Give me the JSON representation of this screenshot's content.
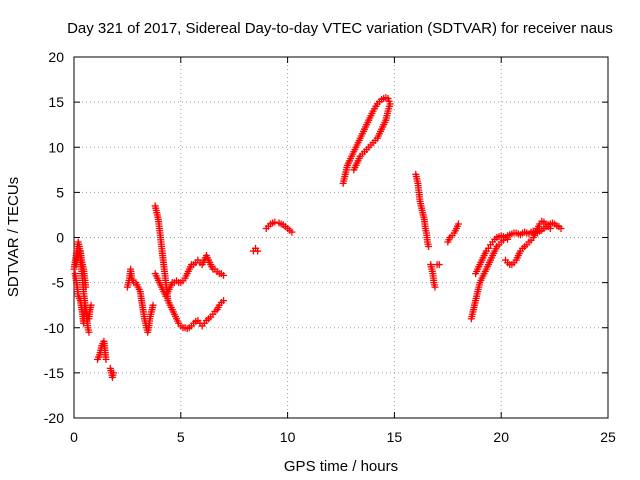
{
  "chart_data": {
    "type": "scatter",
    "title": "Day 321 of 2017, Sidereal Day-to-day VTEC variation (SDTVAR) for receiver naus",
    "xlabel": "GPS time / hours",
    "ylabel": "SDTVAR / TECUs",
    "xlim": [
      0,
      25
    ],
    "ylim": [
      -20,
      20
    ],
    "xticks": [
      0,
      5,
      10,
      15,
      20,
      25
    ],
    "yticks": [
      -20,
      -15,
      -10,
      -5,
      0,
      5,
      10,
      15,
      20
    ],
    "grid": true,
    "marker": "+",
    "series_color": "#ff0000",
    "segments": [
      {
        "points": [
          [
            0.0,
            -3.5
          ],
          [
            0.1,
            -2.0
          ],
          [
            0.2,
            -0.5
          ],
          [
            0.25,
            -1.0
          ],
          [
            0.3,
            -2.5
          ],
          [
            0.35,
            -3.5
          ],
          [
            0.4,
            -4.5
          ],
          [
            0.45,
            -6.0
          ],
          [
            0.5,
            -7.0
          ],
          [
            0.55,
            -8.0
          ],
          [
            0.6,
            -9.0
          ],
          [
            0.65,
            -10.0
          ],
          [
            0.7,
            -10.5
          ]
        ]
      },
      {
        "points": [
          [
            0.05,
            -4.0
          ],
          [
            0.15,
            -5.5
          ],
          [
            0.2,
            -6.5
          ],
          [
            0.3,
            -7.0
          ],
          [
            0.4,
            -8.5
          ],
          [
            0.45,
            -9.5
          ],
          [
            0.5,
            -7.5
          ],
          [
            0.6,
            -8.5
          ],
          [
            0.7,
            -9.0
          ],
          [
            0.75,
            -8.0
          ],
          [
            0.8,
            -7.5
          ]
        ]
      },
      {
        "points": [
          [
            0.1,
            -3.0
          ],
          [
            0.2,
            -2.0
          ],
          [
            0.3,
            -1.5
          ],
          [
            0.35,
            -2.5
          ],
          [
            0.45,
            -3.5
          ],
          [
            0.5,
            -4.5
          ],
          [
            0.55,
            -5.5
          ]
        ]
      },
      {
        "points": [
          [
            1.1,
            -13.5
          ],
          [
            1.2,
            -13.0
          ],
          [
            1.3,
            -12.0
          ],
          [
            1.4,
            -11.5
          ],
          [
            1.45,
            -12.5
          ],
          [
            1.5,
            -13.5
          ]
        ]
      },
      {
        "points": [
          [
            1.7,
            -14.5
          ],
          [
            1.75,
            -15.0
          ],
          [
            1.8,
            -15.5
          ],
          [
            1.85,
            -15.0
          ]
        ]
      },
      {
        "points": [
          [
            2.5,
            -5.5
          ],
          [
            2.6,
            -4.5
          ],
          [
            2.65,
            -3.5
          ],
          [
            2.7,
            -4.5
          ],
          [
            2.8,
            -5.0
          ],
          [
            2.9,
            -5.0
          ],
          [
            3.0,
            -5.5
          ],
          [
            3.1,
            -6.0
          ],
          [
            3.2,
            -7.5
          ],
          [
            3.3,
            -9.0
          ],
          [
            3.4,
            -10.0
          ],
          [
            3.45,
            -10.5
          ],
          [
            3.5,
            -10.0
          ],
          [
            3.55,
            -9.0
          ],
          [
            3.6,
            -8.5
          ],
          [
            3.65,
            -8.0
          ],
          [
            3.7,
            -7.5
          ]
        ]
      },
      {
        "points": [
          [
            3.8,
            -4.0
          ],
          [
            3.9,
            -4.5
          ],
          [
            4.0,
            -5.0
          ],
          [
            4.1,
            -5.5
          ],
          [
            4.2,
            -6.0
          ],
          [
            4.3,
            -6.5
          ],
          [
            4.4,
            -6.0
          ],
          [
            4.5,
            -5.5
          ],
          [
            4.6,
            -5.0
          ],
          [
            4.7,
            -5.0
          ],
          [
            4.8,
            -4.8
          ],
          [
            4.9,
            -5.0
          ],
          [
            5.0,
            -5.0
          ],
          [
            5.1,
            -4.8
          ],
          [
            5.2,
            -4.5
          ],
          [
            5.3,
            -4.0
          ],
          [
            5.4,
            -3.5
          ],
          [
            5.5,
            -3.0
          ],
          [
            5.6,
            -3.0
          ],
          [
            5.7,
            -2.8
          ],
          [
            5.8,
            -2.5
          ],
          [
            5.9,
            -2.8
          ],
          [
            6.0,
            -3.0
          ],
          [
            6.1,
            -2.5
          ],
          [
            6.2,
            -2.0
          ],
          [
            6.3,
            -2.5
          ],
          [
            6.4,
            -3.0
          ],
          [
            6.5,
            -3.5
          ],
          [
            6.6,
            -3.5
          ],
          [
            6.7,
            -3.8
          ],
          [
            6.8,
            -4.0
          ],
          [
            6.9,
            -4.0
          ],
          [
            7.0,
            -4.2
          ]
        ]
      },
      {
        "points": [
          [
            3.8,
            3.5
          ],
          [
            3.85,
            3.0
          ],
          [
            3.9,
            2.5
          ],
          [
            3.95,
            2.0
          ],
          [
            4.0,
            1.0
          ],
          [
            4.05,
            0.0
          ],
          [
            4.1,
            -1.0
          ],
          [
            4.15,
            -2.0
          ],
          [
            4.2,
            -3.0
          ],
          [
            4.25,
            -4.0
          ],
          [
            4.3,
            -5.0
          ],
          [
            4.35,
            -6.0
          ],
          [
            4.4,
            -7.0
          ],
          [
            4.5,
            -7.5
          ],
          [
            4.6,
            -8.0
          ],
          [
            4.7,
            -8.5
          ],
          [
            4.8,
            -9.0
          ],
          [
            4.9,
            -9.5
          ],
          [
            5.0,
            -9.8
          ],
          [
            5.1,
            -10.0
          ],
          [
            5.2,
            -10.0
          ],
          [
            5.3,
            -10.1
          ],
          [
            5.4,
            -10.0
          ],
          [
            5.5,
            -9.8
          ],
          [
            5.6,
            -9.5
          ],
          [
            5.7,
            -9.3
          ],
          [
            5.8,
            -9.2
          ],
          [
            5.9,
            -9.5
          ],
          [
            6.0,
            -9.8
          ],
          [
            6.1,
            -9.5
          ],
          [
            6.2,
            -9.2
          ],
          [
            6.3,
            -9.0
          ],
          [
            6.4,
            -8.8
          ],
          [
            6.5,
            -8.5
          ],
          [
            6.6,
            -8.2
          ],
          [
            6.7,
            -8.0
          ],
          [
            6.8,
            -7.5
          ],
          [
            6.9,
            -7.2
          ],
          [
            7.0,
            -7.0
          ]
        ]
      },
      {
        "points": [
          [
            8.4,
            -1.5
          ],
          [
            8.5,
            -1.2
          ],
          [
            8.6,
            -1.5
          ]
        ]
      },
      {
        "points": [
          [
            9.0,
            1.0
          ],
          [
            9.2,
            1.5
          ],
          [
            9.4,
            1.7
          ],
          [
            9.6,
            1.6
          ],
          [
            9.8,
            1.4
          ],
          [
            10.0,
            1.0
          ],
          [
            10.2,
            0.6
          ]
        ]
      },
      {
        "points": [
          [
            12.6,
            6.0
          ],
          [
            12.7,
            7.0
          ],
          [
            12.8,
            8.0
          ],
          [
            12.9,
            8.5
          ],
          [
            13.0,
            9.0
          ],
          [
            13.2,
            10.0
          ],
          [
            13.4,
            11.0
          ],
          [
            13.6,
            12.0
          ],
          [
            13.8,
            13.0
          ],
          [
            14.0,
            14.0
          ],
          [
            14.2,
            14.8
          ],
          [
            14.4,
            15.3
          ],
          [
            14.6,
            15.5
          ],
          [
            14.7,
            15.4
          ],
          [
            14.8,
            14.8
          ],
          [
            14.7,
            14.0
          ],
          [
            14.6,
            13.0
          ],
          [
            14.4,
            12.0
          ],
          [
            14.2,
            11.0
          ],
          [
            14.0,
            10.5
          ],
          [
            13.8,
            10.0
          ],
          [
            13.6,
            9.5
          ],
          [
            13.4,
            9.0
          ],
          [
            13.3,
            8.5
          ],
          [
            13.2,
            8.0
          ],
          [
            13.1,
            7.5
          ]
        ]
      },
      {
        "points": [
          [
            16.0,
            7.0
          ],
          [
            16.05,
            6.5
          ],
          [
            16.1,
            6.0
          ],
          [
            16.15,
            5.0
          ],
          [
            16.2,
            4.0
          ],
          [
            16.25,
            3.5
          ],
          [
            16.3,
            3.0
          ],
          [
            16.35,
            2.5
          ],
          [
            16.4,
            2.0
          ],
          [
            16.45,
            1.0
          ],
          [
            16.5,
            0.5
          ],
          [
            16.55,
            -0.5
          ],
          [
            16.6,
            -1.0
          ]
        ]
      },
      {
        "points": [
          [
            16.7,
            -3.0
          ],
          [
            16.75,
            -3.5
          ],
          [
            16.8,
            -4.0
          ],
          [
            16.85,
            -5.0
          ],
          [
            16.9,
            -5.5
          ]
        ]
      },
      {
        "points": [
          [
            17.0,
            -3.0
          ],
          [
            17.1,
            -3.0
          ]
        ]
      },
      {
        "points": [
          [
            17.5,
            -0.5
          ],
          [
            17.6,
            0.0
          ],
          [
            17.7,
            0.2
          ],
          [
            17.8,
            0.5
          ],
          [
            17.9,
            1.0
          ],
          [
            18.0,
            1.5
          ]
        ]
      },
      {
        "points": [
          [
            18.6,
            -9.0
          ],
          [
            18.7,
            -8.0
          ],
          [
            18.8,
            -7.0
          ],
          [
            18.9,
            -6.0
          ],
          [
            19.0,
            -5.0
          ],
          [
            19.1,
            -4.5
          ],
          [
            19.2,
            -4.0
          ],
          [
            19.3,
            -3.5
          ],
          [
            19.4,
            -3.0
          ],
          [
            19.5,
            -2.5
          ],
          [
            19.6,
            -2.0
          ],
          [
            19.7,
            -1.5
          ],
          [
            19.8,
            -1.0
          ],
          [
            19.9,
            -0.8
          ],
          [
            20.0,
            -0.5
          ],
          [
            20.1,
            -0.3
          ],
          [
            20.2,
            0.0
          ],
          [
            20.3,
            0.2
          ],
          [
            20.4,
            0.3
          ],
          [
            20.5,
            0.4
          ],
          [
            20.6,
            0.5
          ],
          [
            20.7,
            0.5
          ],
          [
            20.8,
            0.4
          ],
          [
            20.9,
            0.3
          ],
          [
            21.0,
            0.5
          ],
          [
            21.1,
            0.6
          ],
          [
            21.2,
            0.5
          ],
          [
            21.3,
            0.4
          ],
          [
            21.4,
            0.6
          ],
          [
            21.5,
            0.7
          ],
          [
            21.6,
            0.6
          ],
          [
            21.7,
            0.5
          ],
          [
            21.8,
            0.7
          ],
          [
            21.9,
            0.8
          ],
          [
            22.0,
            1.0
          ],
          [
            22.1,
            1.2
          ],
          [
            22.2,
            1.4
          ],
          [
            22.3,
            1.5
          ],
          [
            22.4,
            1.6
          ],
          [
            22.5,
            1.5
          ],
          [
            22.6,
            1.3
          ],
          [
            22.7,
            1.2
          ],
          [
            22.8,
            1.0
          ]
        ]
      },
      {
        "points": [
          [
            18.8,
            -4.0
          ],
          [
            18.9,
            -3.5
          ],
          [
            19.0,
            -3.0
          ],
          [
            19.1,
            -2.5
          ],
          [
            19.2,
            -2.0
          ],
          [
            19.3,
            -1.5
          ],
          [
            19.4,
            -1.2
          ],
          [
            19.5,
            -0.8
          ],
          [
            19.6,
            -0.5
          ],
          [
            19.7,
            -0.2
          ],
          [
            19.8,
            0.0
          ],
          [
            19.9,
            0.1
          ],
          [
            20.0,
            0.2
          ],
          [
            20.1,
            0.1
          ],
          [
            20.2,
            0.0
          ],
          [
            20.3,
            -0.2
          ]
        ]
      },
      {
        "points": [
          [
            20.2,
            -2.5
          ],
          [
            20.3,
            -2.8
          ],
          [
            20.4,
            -3.0
          ],
          [
            20.5,
            -3.0
          ],
          [
            20.6,
            -2.8
          ],
          [
            20.7,
            -2.5
          ],
          [
            20.8,
            -2.0
          ],
          [
            20.9,
            -1.5
          ],
          [
            21.0,
            -1.2
          ],
          [
            21.1,
            -1.0
          ],
          [
            21.2,
            -0.8
          ],
          [
            21.3,
            -0.5
          ],
          [
            21.4,
            -0.3
          ],
          [
            21.5,
            0.0
          ],
          [
            21.6,
            0.5
          ],
          [
            21.7,
            1.0
          ],
          [
            21.8,
            1.5
          ],
          [
            21.9,
            1.8
          ],
          [
            22.0,
            1.7
          ],
          [
            22.1,
            1.5
          ],
          [
            22.2,
            1.2
          ],
          [
            22.3,
            1.0
          ]
        ]
      }
    ]
  }
}
